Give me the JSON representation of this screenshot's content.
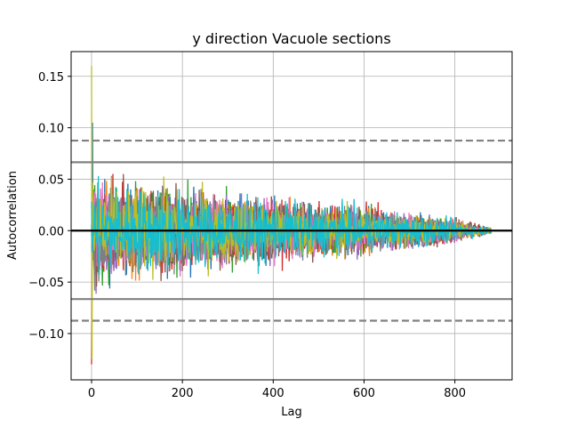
{
  "chart_data": {
    "type": "line",
    "title": "y direction Vacuole sections",
    "xlabel": "Lag",
    "ylabel": "Autocorrelation",
    "xlim": [
      -45,
      926
    ],
    "ylim": [
      -0.145,
      0.174
    ],
    "xticks": [
      0,
      200,
      400,
      600,
      800
    ],
    "xtick_labels": [
      "0",
      "200",
      "400",
      "600",
      "800"
    ],
    "yticks": [
      -0.1,
      -0.05,
      0.0,
      0.05,
      0.1,
      0.15
    ],
    "ytick_labels": [
      "−0.10",
      "−0.05",
      "0.00",
      "0.05",
      "0.10",
      "0.15"
    ],
    "grid": true,
    "zero_line": 0.0,
    "confidence_bands": {
      "solid": [
        0.0665,
        -0.0665
      ],
      "dashed": [
        0.0875,
        -0.0875
      ]
    },
    "lag_max": 880,
    "series_colors": [
      "#1f77b4",
      "#ff7f0e",
      "#2ca02c",
      "#d62728",
      "#9467bd",
      "#8c564b",
      "#e377c2",
      "#7f7f7f",
      "#bcbd22",
      "#17becf"
    ],
    "series_count": 10,
    "envelope": {
      "x": [
        0,
        50,
        100,
        150,
        200,
        250,
        300,
        400,
        500,
        600,
        700,
        800,
        880
      ],
      "amplitude": [
        0.085,
        0.075,
        0.07,
        0.068,
        0.065,
        0.06,
        0.055,
        0.048,
        0.042,
        0.036,
        0.028,
        0.018,
        0.004
      ]
    },
    "peaks": [
      {
        "x": 0,
        "y": 0.16,
        "series": 8
      },
      {
        "x": 0,
        "y": -0.13,
        "series": 3
      },
      {
        "x": 2,
        "y": 0.105,
        "series": 0
      },
      {
        "x": 1,
        "y": -0.125,
        "series": 8
      }
    ]
  }
}
